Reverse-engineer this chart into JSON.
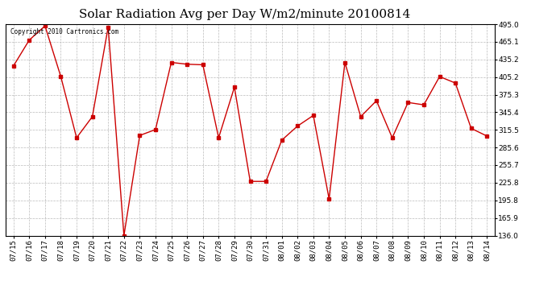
{
  "title": "Solar Radiation Avg per Day W/m2/minute 20100814",
  "copyright_text": "Copyright 2010 Cartronics.com",
  "dates": [
    "07/15",
    "07/16",
    "07/17",
    "07/18",
    "07/19",
    "07/20",
    "07/21",
    "07/22",
    "07/23",
    "07/24",
    "07/25",
    "07/26",
    "07/27",
    "07/28",
    "07/29",
    "07/30",
    "07/31",
    "08/01",
    "08/02",
    "08/03",
    "08/04",
    "08/05",
    "08/06",
    "08/07",
    "08/08",
    "08/09",
    "08/10",
    "08/11",
    "08/12",
    "08/13",
    "08/14"
  ],
  "values": [
    424,
    468,
    492,
    406,
    302,
    338,
    490,
    136,
    306,
    316,
    430,
    427,
    426,
    302,
    388,
    228,
    228,
    298,
    322,
    340,
    198,
    430,
    338,
    365,
    302,
    362,
    358,
    406,
    395,
    318,
    305
  ],
  "line_color": "#cc0000",
  "marker": "s",
  "marker_size": 2.5,
  "ylim": [
    136.0,
    495.0
  ],
  "yticks": [
    136.0,
    165.9,
    195.8,
    225.8,
    255.7,
    285.6,
    315.5,
    345.4,
    375.3,
    405.2,
    435.2,
    465.1,
    495.0
  ],
  "background_color": "#ffffff",
  "grid_color": "#bbbbbb",
  "title_fontsize": 11,
  "tick_fontsize": 6.5,
  "copyright_fontsize": 5.5
}
